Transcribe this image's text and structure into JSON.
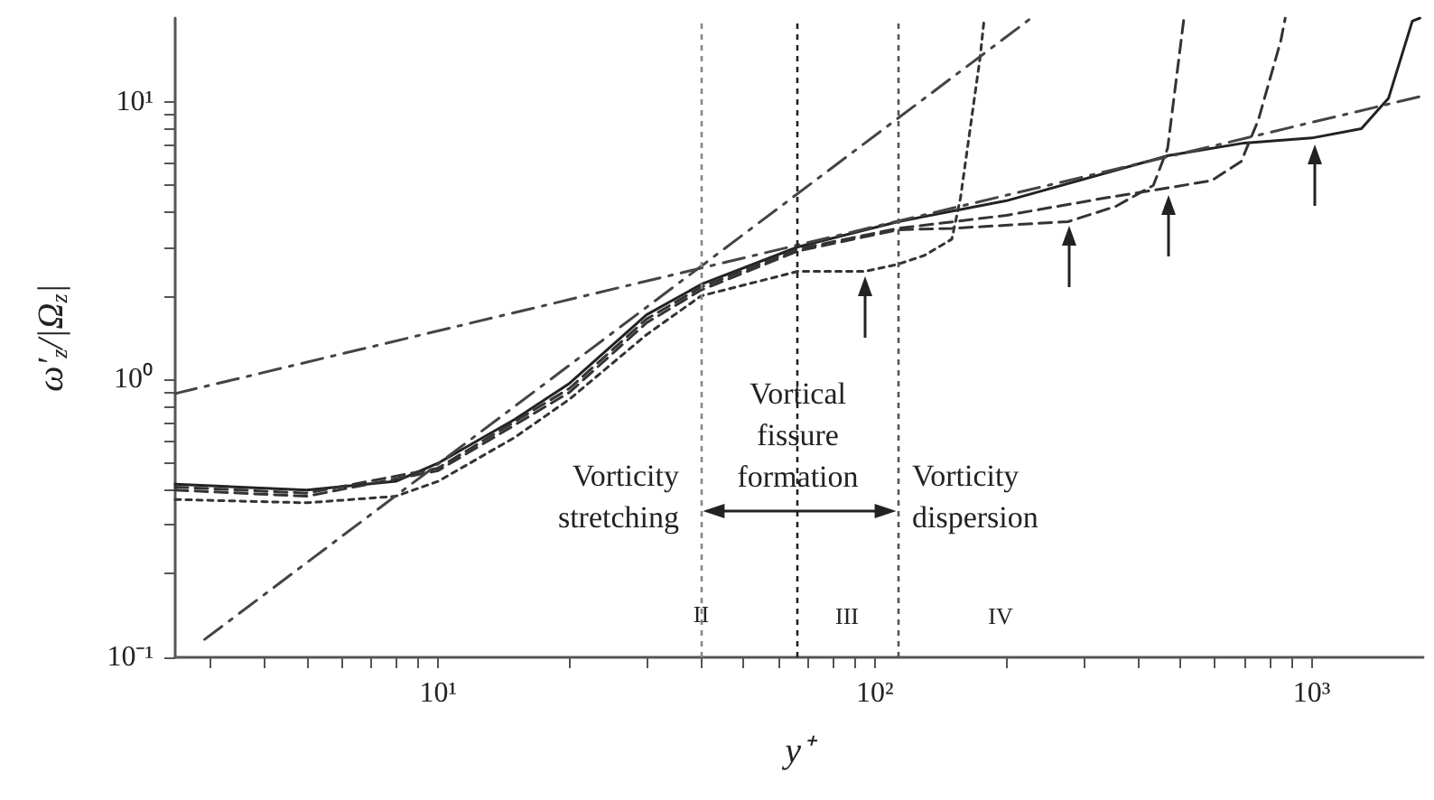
{
  "chart_data": {
    "type": "line",
    "xlabel": "y⁺",
    "ylabel": "ω′$_{z}$/|Ω$_{z}$|",
    "xlim": [
      2.5,
      1800
    ],
    "ylim": [
      0.1,
      20
    ],
    "log": "xy",
    "grid": false,
    "marker": "none",
    "xticks": [
      {
        "value": 3,
        "label": null
      },
      {
        "value": 4,
        "label": null
      },
      {
        "value": 5,
        "label": null
      },
      {
        "value": 6,
        "label": null
      },
      {
        "value": 7,
        "label": null
      },
      {
        "value": 8,
        "label": null
      },
      {
        "value": 9,
        "label": null
      },
      {
        "value": 10,
        "label": "10¹"
      },
      {
        "value": 20,
        "label": null
      },
      {
        "value": 30,
        "label": null
      },
      {
        "value": 40,
        "label": null
      },
      {
        "value": 50,
        "label": null
      },
      {
        "value": 60,
        "label": null
      },
      {
        "value": 70,
        "label": null
      },
      {
        "value": 80,
        "label": null
      },
      {
        "value": 90,
        "label": null
      },
      {
        "value": 100,
        "label": "10²"
      },
      {
        "value": 200,
        "label": null
      },
      {
        "value": 300,
        "label": null
      },
      {
        "value": 400,
        "label": null
      },
      {
        "value": 500,
        "label": null
      },
      {
        "value": 600,
        "label": null
      },
      {
        "value": 700,
        "label": null
      },
      {
        "value": 800,
        "label": null
      },
      {
        "value": 900,
        "label": null
      },
      {
        "value": 1000,
        "label": "10³"
      }
    ],
    "yticks": [
      {
        "value": 0.1,
        "label": "10⁻¹"
      },
      {
        "value": 0.2,
        "label": null
      },
      {
        "value": 0.3,
        "label": null
      },
      {
        "value": 0.4,
        "label": null
      },
      {
        "value": 0.5,
        "label": null
      },
      {
        "value": 0.6,
        "label": null
      },
      {
        "value": 0.7,
        "label": null
      },
      {
        "value": 0.8,
        "label": null
      },
      {
        "value": 0.9,
        "label": null
      },
      {
        "value": 1,
        "label": "10⁰"
      },
      {
        "value": 2,
        "label": null
      },
      {
        "value": 3,
        "label": null
      },
      {
        "value": 4,
        "label": null
      },
      {
        "value": 5,
        "label": null
      },
      {
        "value": 6,
        "label": null
      },
      {
        "value": 7,
        "label": null
      },
      {
        "value": 8,
        "label": null
      },
      {
        "value": 9,
        "label": null
      },
      {
        "value": 10,
        "label": "10¹"
      }
    ],
    "series": [
      {
        "color": "#222222",
        "line_style": "solid",
        "x": [
          2.5,
          5,
          8,
          10,
          15,
          20,
          30,
          40,
          66.6,
          113,
          200,
          470,
          700,
          1000,
          1300,
          1500,
          1700,
          1770
        ],
        "values": [
          0.42,
          0.4,
          0.43,
          0.5,
          0.72,
          0.97,
          1.71,
          2.2,
          3.0,
          3.7,
          4.4,
          6.4,
          7.1,
          7.4,
          8.0,
          10.3,
          19.5,
          20
        ]
      },
      {
        "color": "#333333",
        "line_style": "dotted",
        "x": [
          2.5,
          5,
          8,
          10,
          15,
          20,
          30,
          40,
          66.6,
          95,
          113,
          130,
          150,
          157,
          174,
          178
        ],
        "values": [
          0.37,
          0.36,
          0.38,
          0.43,
          0.62,
          0.85,
          1.45,
          2.0,
          2.45,
          2.45,
          2.6,
          2.8,
          3.2,
          4.5,
          14.3,
          20
        ]
      },
      {
        "color": "#333333",
        "line_style": "dashed",
        "x": [
          2.5,
          5,
          10,
          20,
          30,
          40,
          66.6,
          113,
          150,
          277,
          356,
          434,
          468,
          510
        ],
        "values": [
          0.4,
          0.38,
          0.47,
          0.9,
          1.6,
          2.1,
          2.9,
          3.46,
          3.5,
          3.7,
          4.2,
          5.0,
          6.8,
          20
        ]
      },
      {
        "color": "#333333",
        "line_style": "dashed",
        "x": [
          2.5,
          5,
          10,
          20,
          30,
          40,
          66.6,
          113,
          200,
          336,
          434,
          590,
          690,
          755,
          850,
          870
        ],
        "values": [
          0.41,
          0.39,
          0.48,
          0.93,
          1.65,
          2.15,
          2.95,
          3.5,
          3.9,
          4.5,
          4.8,
          5.2,
          6.1,
          8.6,
          16.6,
          20
        ]
      },
      {
        "color": "#444444",
        "line_style": "dashdot",
        "x": [
          2.5,
          1800
        ],
        "values": [
          0.89,
          10.5
        ]
      },
      {
        "color": "#444444",
        "line_style": "dashdot",
        "x": [
          2.92,
          228
        ],
        "values": [
          0.116,
          20
        ]
      }
    ],
    "ref_lines": [
      {
        "axis": "x",
        "value": 40,
        "color": "#888888",
        "line_style": "dotted"
      },
      {
        "axis": "x",
        "value": 66.6,
        "color": "#222222",
        "line_style": "dotted"
      },
      {
        "axis": "x",
        "value": 113,
        "color": "#555555",
        "line_style": "dotted"
      }
    ],
    "annotations": [
      {
        "text": "II",
        "x": 40,
        "y": 0.143
      },
      "III",
      "IV",
      "Vorticity\nstretching",
      {
        "text": "Vortical\nfissure\nformation",
        "x": 66.6,
        "y": 0.63
      },
      "Vorticity\ndispersion"
    ]
  }
}
